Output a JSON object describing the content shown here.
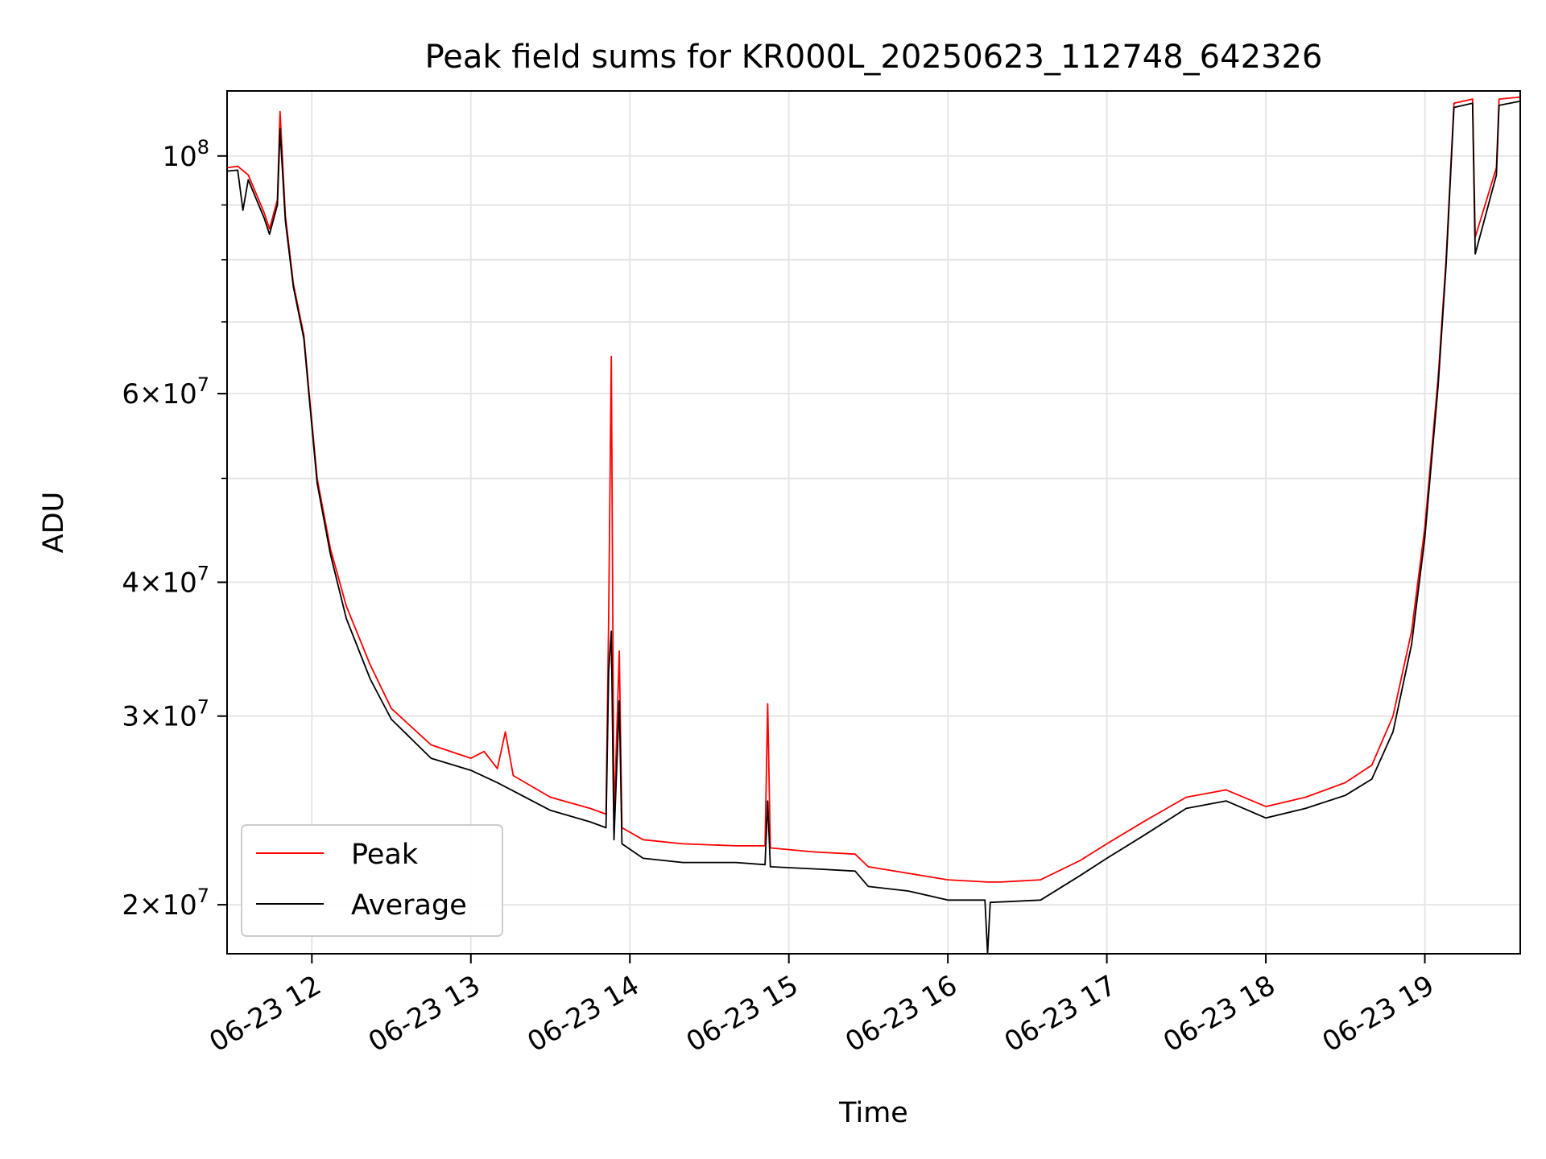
{
  "chart_data": {
    "type": "line",
    "title": "Peak field sums for KR000L_20250623_112748_642326",
    "xlabel": "Time",
    "ylabel": "ADU",
    "y_scale": "log",
    "ylim": [
      18000000,
      115000000
    ],
    "xlim": [
      "2025-06-23 11:28",
      "2025-06-23 19:36"
    ],
    "grid": true,
    "legend_position": "lower left",
    "x_ticks": [
      {
        "t": "2025-06-23 12:00",
        "label": "06-23 12"
      },
      {
        "t": "2025-06-23 13:00",
        "label": "06-23 13"
      },
      {
        "t": "2025-06-23 14:00",
        "label": "06-23 14"
      },
      {
        "t": "2025-06-23 15:00",
        "label": "06-23 15"
      },
      {
        "t": "2025-06-23 16:00",
        "label": "06-23 16"
      },
      {
        "t": "2025-06-23 17:00",
        "label": "06-23 17"
      },
      {
        "t": "2025-06-23 18:00",
        "label": "06-23 18"
      },
      {
        "t": "2025-06-23 19:00",
        "label": "06-23 19"
      }
    ],
    "y_ticks_major": [
      {
        "value": 20000000,
        "mant": "2",
        "exp": "7"
      },
      {
        "value": 30000000,
        "mant": "3",
        "exp": "7"
      },
      {
        "value": 40000000,
        "mant": "4",
        "exp": "7"
      },
      {
        "value": 60000000,
        "mant": "6",
        "exp": "7"
      },
      {
        "value": 100000000,
        "mant": "",
        "exp": "8"
      }
    ],
    "y_ticks_minor": [
      50000000,
      70000000,
      80000000,
      90000000
    ],
    "series": [
      {
        "name": "Peak",
        "color": "#ff0000",
        "points": [
          [
            "2025-06-23 11:28",
            97500000
          ],
          [
            "2025-06-23 11:32",
            97800000
          ],
          [
            "2025-06-23 11:36",
            96000000
          ],
          [
            "2025-06-23 11:42",
            88500000
          ],
          [
            "2025-06-23 11:44",
            85500000
          ],
          [
            "2025-06-23 11:47",
            91000000
          ],
          [
            "2025-06-23 11:48",
            110000000
          ],
          [
            "2025-06-23 11:50",
            88000000
          ],
          [
            "2025-06-23 11:53",
            76000000
          ],
          [
            "2025-06-23 11:57",
            68000000
          ],
          [
            "2025-06-23 11:59",
            60000000
          ],
          [
            "2025-06-23 12:02",
            50000000
          ],
          [
            "2025-06-23 12:07",
            43000000
          ],
          [
            "2025-06-23 12:13",
            38000000
          ],
          [
            "2025-06-23 12:22",
            33500000
          ],
          [
            "2025-06-23 12:30",
            30500000
          ],
          [
            "2025-06-23 12:45",
            28200000
          ],
          [
            "2025-06-23 13:00",
            27400000
          ],
          [
            "2025-06-23 13:05",
            27800000
          ],
          [
            "2025-06-23 13:10",
            26800000
          ],
          [
            "2025-06-23 13:13",
            29000000
          ],
          [
            "2025-06-23 13:16",
            26400000
          ],
          [
            "2025-06-23 13:30",
            25200000
          ],
          [
            "2025-06-23 13:45",
            24600000
          ],
          [
            "2025-06-23 13:51",
            24300000
          ],
          [
            "2025-06-23 13:52",
            37000000
          ],
          [
            "2025-06-23 13:53",
            65000000
          ],
          [
            "2025-06-23 13:54",
            23800000
          ],
          [
            "2025-06-23 13:56",
            34500000
          ],
          [
            "2025-06-23 13:57",
            23600000
          ],
          [
            "2025-06-23 14:05",
            23000000
          ],
          [
            "2025-06-23 14:20",
            22800000
          ],
          [
            "2025-06-23 14:40",
            22700000
          ],
          [
            "2025-06-23 14:51",
            22700000
          ],
          [
            "2025-06-23 14:52",
            30800000
          ],
          [
            "2025-06-23 14:53",
            22600000
          ],
          [
            "2025-06-23 15:10",
            22400000
          ],
          [
            "2025-06-23 15:25",
            22300000
          ],
          [
            "2025-06-23 15:30",
            21700000
          ],
          [
            "2025-06-23 15:45",
            21400000
          ],
          [
            "2025-06-23 16:00",
            21100000
          ],
          [
            "2025-06-23 16:15",
            21000000
          ],
          [
            "2025-06-23 16:20",
            21000000
          ],
          [
            "2025-06-23 16:35",
            21100000
          ],
          [
            "2025-06-23 16:50",
            22000000
          ],
          [
            "2025-06-23 17:00",
            22800000
          ],
          [
            "2025-06-23 17:15",
            24000000
          ],
          [
            "2025-06-23 17:30",
            25200000
          ],
          [
            "2025-06-23 17:45",
            25600000
          ],
          [
            "2025-06-23 18:00",
            24700000
          ],
          [
            "2025-06-23 18:15",
            25200000
          ],
          [
            "2025-06-23 18:30",
            26000000
          ],
          [
            "2025-06-23 18:40",
            27000000
          ],
          [
            "2025-06-23 18:48",
            30000000
          ],
          [
            "2025-06-23 18:55",
            36000000
          ],
          [
            "2025-06-23 19:00",
            45000000
          ],
          [
            "2025-06-23 19:05",
            62000000
          ],
          [
            "2025-06-23 19:08",
            80000000
          ],
          [
            "2025-06-23 19:11",
            112000000
          ],
          [
            "2025-06-23 19:18",
            113000000
          ],
          [
            "2025-06-23 19:19",
            84000000
          ],
          [
            "2025-06-23 19:27",
            97500000
          ],
          [
            "2025-06-23 19:28",
            113000000
          ],
          [
            "2025-06-23 19:36",
            113500000
          ]
        ]
      },
      {
        "name": "Average",
        "color": "#000000",
        "points": [
          [
            "2025-06-23 11:28",
            96800000
          ],
          [
            "2025-06-23 11:32",
            97000000
          ],
          [
            "2025-06-23 11:34",
            89000000
          ],
          [
            "2025-06-23 11:36",
            95000000
          ],
          [
            "2025-06-23 11:42",
            87500000
          ],
          [
            "2025-06-23 11:44",
            84500000
          ],
          [
            "2025-06-23 11:47",
            90000000
          ],
          [
            "2025-06-23 11:48",
            106000000
          ],
          [
            "2025-06-23 11:50",
            87000000
          ],
          [
            "2025-06-23 11:53",
            75500000
          ],
          [
            "2025-06-23 11:57",
            67500000
          ],
          [
            "2025-06-23 11:59",
            59500000
          ],
          [
            "2025-06-23 12:02",
            49500000
          ],
          [
            "2025-06-23 12:07",
            42500000
          ],
          [
            "2025-06-23 12:13",
            37000000
          ],
          [
            "2025-06-23 12:22",
            32500000
          ],
          [
            "2025-06-23 12:30",
            29800000
          ],
          [
            "2025-06-23 12:45",
            27400000
          ],
          [
            "2025-06-23 13:00",
            26700000
          ],
          [
            "2025-06-23 13:10",
            26000000
          ],
          [
            "2025-06-23 13:30",
            24500000
          ],
          [
            "2025-06-23 13:45",
            23900000
          ],
          [
            "2025-06-23 13:51",
            23600000
          ],
          [
            "2025-06-23 13:52",
            33000000
          ],
          [
            "2025-06-23 13:53",
            36000000
          ],
          [
            "2025-06-23 13:54",
            23000000
          ],
          [
            "2025-06-23 13:56",
            31000000
          ],
          [
            "2025-06-23 13:57",
            22800000
          ],
          [
            "2025-06-23 14:05",
            22100000
          ],
          [
            "2025-06-23 14:20",
            21900000
          ],
          [
            "2025-06-23 14:40",
            21900000
          ],
          [
            "2025-06-23 14:51",
            21800000
          ],
          [
            "2025-06-23 14:52",
            25000000
          ],
          [
            "2025-06-23 14:53",
            21700000
          ],
          [
            "2025-06-23 15:10",
            21600000
          ],
          [
            "2025-06-23 15:25",
            21500000
          ],
          [
            "2025-06-23 15:30",
            20800000
          ],
          [
            "2025-06-23 15:45",
            20600000
          ],
          [
            "2025-06-23 16:00",
            20200000
          ],
          [
            "2025-06-23 16:14",
            20200000
          ],
          [
            "2025-06-23 16:15",
            18000000
          ],
          [
            "2025-06-23 16:16",
            20100000
          ],
          [
            "2025-06-23 16:35",
            20200000
          ],
          [
            "2025-06-23 16:50",
            21300000
          ],
          [
            "2025-06-23 17:00",
            22100000
          ],
          [
            "2025-06-23 17:15",
            23300000
          ],
          [
            "2025-06-23 17:30",
            24600000
          ],
          [
            "2025-06-23 17:45",
            25000000
          ],
          [
            "2025-06-23 18:00",
            24100000
          ],
          [
            "2025-06-23 18:15",
            24600000
          ],
          [
            "2025-06-23 18:30",
            25300000
          ],
          [
            "2025-06-23 18:40",
            26200000
          ],
          [
            "2025-06-23 18:48",
            29000000
          ],
          [
            "2025-06-23 18:55",
            35000000
          ],
          [
            "2025-06-23 19:00",
            44000000
          ],
          [
            "2025-06-23 19:05",
            61000000
          ],
          [
            "2025-06-23 19:08",
            79000000
          ],
          [
            "2025-06-23 19:11",
            111000000
          ],
          [
            "2025-06-23 19:18",
            112000000
          ],
          [
            "2025-06-23 19:19",
            81000000
          ],
          [
            "2025-06-23 19:27",
            96000000
          ],
          [
            "2025-06-23 19:28",
            111500000
          ],
          [
            "2025-06-23 19:36",
            112500000
          ]
        ]
      }
    ]
  }
}
